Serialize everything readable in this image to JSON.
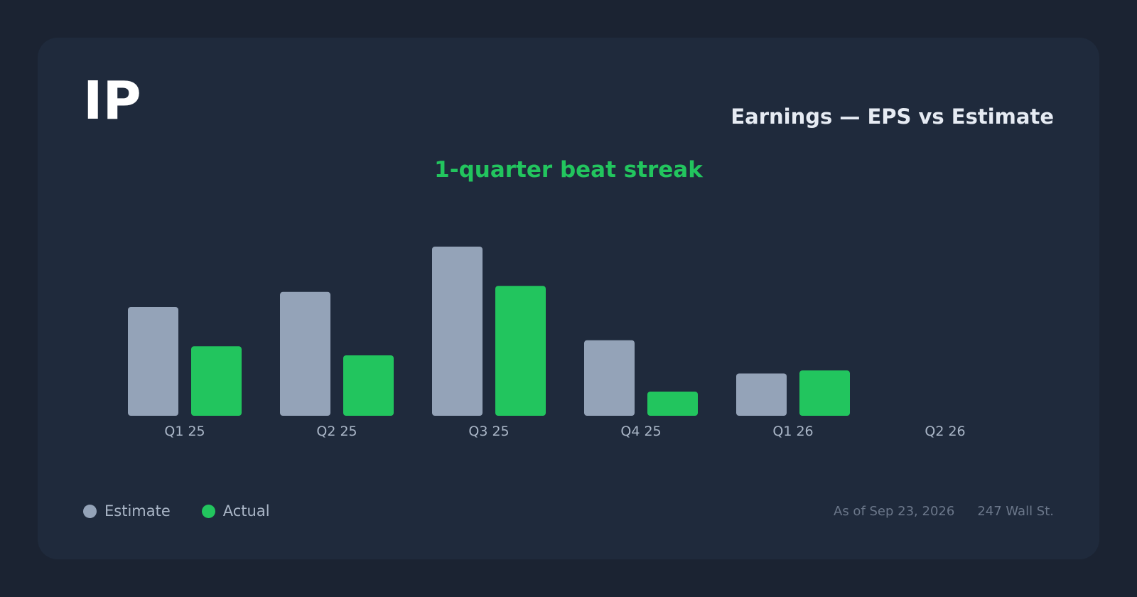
{
  "ticker": "IP",
  "header": {
    "title": "Earnings — EPS vs Estimate",
    "streak": "1-quarter beat streak"
  },
  "legend": {
    "estimate_label": "Estimate",
    "actual_label": "Actual"
  },
  "footer": {
    "as_of": "As of Sep 23, 2026",
    "source": "247 Wall St."
  },
  "colors": {
    "estimate": "#94a3b8",
    "actual": "#22c55e",
    "tick_label": "#aab6c7"
  },
  "chart_data": {
    "type": "bar",
    "title": "Earnings — EPS vs Estimate",
    "categories": [
      "Q1 25",
      "Q2 25",
      "Q3 25",
      "Q4 25",
      "Q1 26",
      "Q2 26"
    ],
    "series": [
      {
        "name": "Estimate",
        "values": [
          0.36,
          0.41,
          0.56,
          0.25,
          0.14,
          null
        ]
      },
      {
        "name": "Actual",
        "values": [
          0.23,
          0.2,
          0.43,
          0.08,
          0.15,
          null
        ]
      }
    ],
    "grid": false,
    "legend_position": "bottom-left"
  }
}
